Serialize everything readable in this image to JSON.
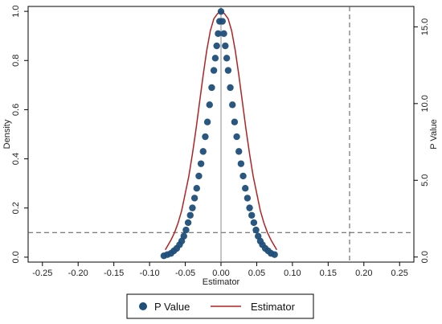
{
  "chart_data": {
    "type": "scatter",
    "xlabel": "Estimator",
    "ylabel_left": "Density",
    "ylabel_right": "P Value",
    "xlim": [
      -0.27,
      0.27
    ],
    "ylim_left": [
      -0.02,
      1.02
    ],
    "ylim_right": [
      -0.33,
      16.33
    ],
    "x_ticks": [
      "-0.25",
      "-0.20",
      "-0.15",
      "-0.10",
      "-0.05",
      "0.00",
      "0.05",
      "0.10",
      "0.15",
      "0.20",
      "0.25"
    ],
    "y_ticks_left": [
      "0.0",
      "0.2",
      "0.4",
      "0.6",
      "0.8",
      "1.0"
    ],
    "y_ticks_right": [
      "0.0",
      "5.0",
      "10.0",
      "15.0"
    ],
    "reference_lines": {
      "horizontal_dashed_density": 0.1,
      "vertical_dashed_x": 0.18,
      "vertical_solid_x": 0.0
    },
    "series": [
      {
        "name": "P Value",
        "kind": "scatter",
        "axis": "right",
        "color": "#1f4e79",
        "x": [
          -0.08,
          -0.075,
          -0.07,
          -0.066,
          -0.062,
          -0.058,
          -0.055,
          -0.052,
          -0.049,
          -0.046,
          -0.043,
          -0.04,
          -0.037,
          -0.034,
          -0.031,
          -0.028,
          -0.025,
          -0.022,
          -0.019,
          -0.016,
          -0.013,
          -0.01,
          -0.008,
          -0.006,
          -0.004,
          -0.002,
          0.0,
          0.002,
          0.004,
          0.006,
          0.008,
          0.01,
          0.013,
          0.016,
          0.019,
          0.022,
          0.025,
          0.028,
          0.031,
          0.034,
          0.037,
          0.04,
          0.043,
          0.046,
          0.049,
          0.052,
          0.055,
          0.058,
          0.062,
          0.066,
          0.07,
          0.075
        ],
        "y": [
          0.08,
          0.16,
          0.24,
          0.4,
          0.56,
          0.8,
          1.04,
          1.36,
          1.76,
          2.24,
          2.72,
          3.2,
          3.84,
          4.48,
          5.28,
          6.08,
          6.88,
          7.84,
          8.8,
          9.92,
          11.04,
          12.16,
          12.96,
          13.76,
          14.56,
          15.36,
          16.0,
          15.36,
          14.56,
          13.76,
          12.96,
          12.16,
          11.04,
          9.92,
          8.8,
          7.84,
          6.88,
          6.08,
          5.28,
          4.48,
          3.84,
          3.2,
          2.72,
          2.24,
          1.76,
          1.36,
          1.04,
          0.8,
          0.56,
          0.4,
          0.24,
          0.16
        ]
      },
      {
        "name": "Estimator",
        "kind": "line",
        "axis": "left",
        "color": "#b22222",
        "x": [
          -0.078,
          -0.07,
          -0.065,
          -0.06,
          -0.055,
          -0.05,
          -0.045,
          -0.04,
          -0.035,
          -0.03,
          -0.025,
          -0.02,
          -0.015,
          -0.01,
          -0.005,
          0.0,
          0.005,
          0.01,
          0.015,
          0.02,
          0.025,
          0.03,
          0.035,
          0.04,
          0.045,
          0.05,
          0.055,
          0.06,
          0.065,
          0.07,
          0.078
        ],
        "y": [
          0.03,
          0.07,
          0.1,
          0.14,
          0.19,
          0.26,
          0.33,
          0.42,
          0.52,
          0.63,
          0.74,
          0.84,
          0.92,
          0.97,
          0.99,
          1.0,
          0.99,
          0.97,
          0.92,
          0.84,
          0.74,
          0.63,
          0.52,
          0.42,
          0.33,
          0.26,
          0.19,
          0.14,
          0.1,
          0.07,
          0.03
        ]
      }
    ],
    "legend": {
      "position": "bottom",
      "items": [
        {
          "label": "P Value",
          "symbol": "filled-circle",
          "color": "#1f4e79"
        },
        {
          "label": "Estimator",
          "symbol": "line",
          "color": "#b22222"
        }
      ]
    }
  }
}
